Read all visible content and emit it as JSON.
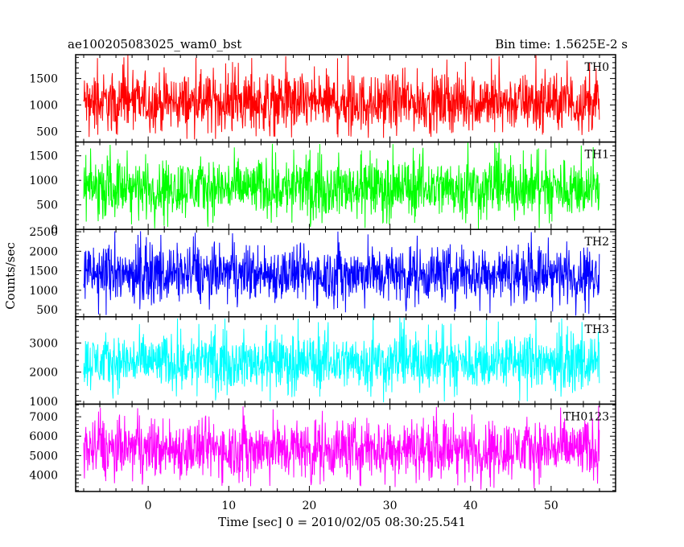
{
  "chart_data": {
    "type": "line",
    "title_left": "ae100205083025_wam0_bst",
    "title_right": "Bin time: 1.5625E-2 s",
    "xlabel": "Time [sec] 0 = 2010/02/05 08:30:25.541",
    "ylabel": "Counts/sec",
    "xlim": [
      -9,
      58
    ],
    "x_ticks": [
      0,
      10,
      20,
      30,
      40,
      50
    ],
    "x_tick_labels": [
      "0",
      "10",
      "20",
      "30",
      "40",
      "50"
    ],
    "data_x_range": [
      -8,
      56
    ],
    "grid": false,
    "legend": "none",
    "panels": [
      {
        "name": "TH0",
        "color": "#ff0000",
        "ylim": [
          300,
          1950
        ],
        "ticks": [
          500,
          1000,
          1500
        ],
        "tick_labels": [
          "500",
          "1000",
          "1500"
        ],
        "typ_low": 500,
        "typ_high": 1600,
        "min": 350,
        "max": 1950
      },
      {
        "name": "TH1",
        "color": "#00ff00",
        "ylim": [
          0,
          1780
        ],
        "ticks": [
          0,
          500,
          1000,
          1500
        ],
        "tick_labels": [
          "0",
          "500",
          "1000",
          "1500"
        ],
        "typ_low": 250,
        "typ_high": 1450,
        "min": 0,
        "max": 1780
      },
      {
        "name": "TH2",
        "color": "#0000ff",
        "ylim": [
          320,
          2560
        ],
        "ticks": [
          500,
          1000,
          1500,
          2000,
          2500
        ],
        "tick_labels": [
          "500",
          "1000",
          "1500",
          "2000",
          "2500"
        ],
        "typ_low": 700,
        "typ_high": 2150,
        "min": 330,
        "max": 2560
      },
      {
        "name": "TH3",
        "color": "#00ffff",
        "ylim": [
          900,
          3900
        ],
        "ticks": [
          1000,
          2000,
          3000
        ],
        "tick_labels": [
          "1000",
          "2000",
          "3000"
        ],
        "typ_low": 1400,
        "typ_high": 3300,
        "min": 950,
        "max": 3900
      },
      {
        "name": "TH0123",
        "color": "#ff00ff",
        "ylim": [
          3150,
          7650
        ],
        "ticks": [
          4000,
          5000,
          6000,
          7000
        ],
        "tick_labels": [
          "4000",
          "5000",
          "6000",
          "7000"
        ],
        "typ_low": 3800,
        "typ_high": 6900,
        "min": 3200,
        "max": 7650
      }
    ]
  }
}
